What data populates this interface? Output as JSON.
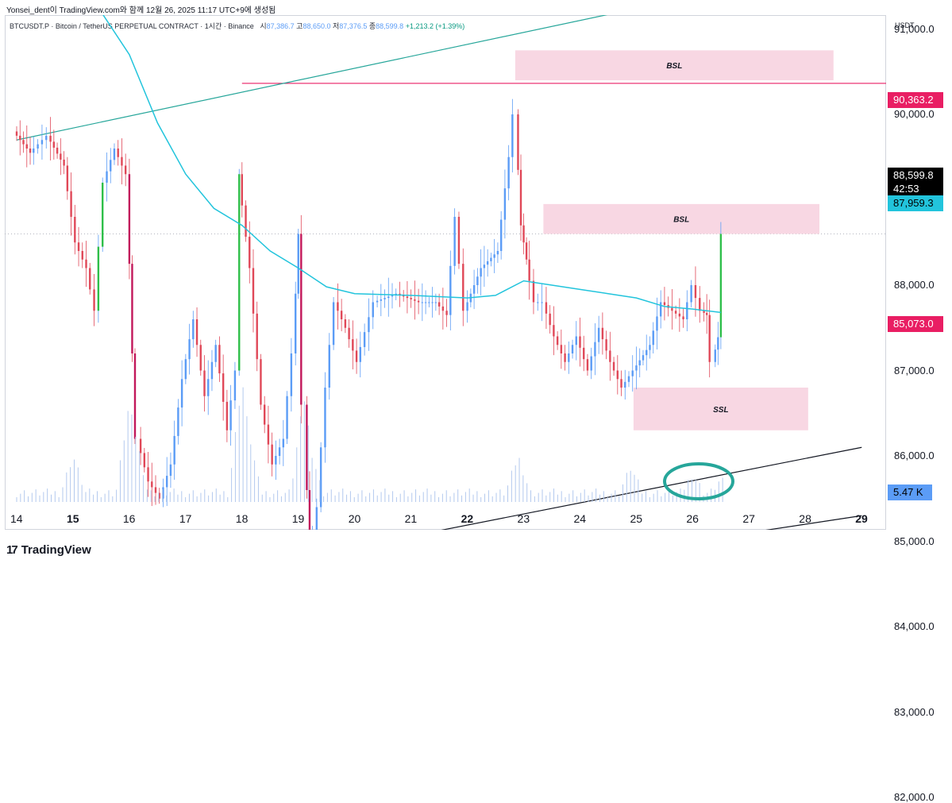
{
  "header": {
    "attribution": "Yonsei_dent이 TradingView.com와 함께 12월 26, 2025 11:17 UTC+9에 생성됨",
    "symbol_line": "BTCUSDT.P · Bitcoin / TetherUS PERPETUAL CONTRACT · 1시간 · Binance",
    "ohlc_o_label": "시",
    "ohlc_o": "87,386.7",
    "ohlc_h_label": "고",
    "ohlc_h": "88,650.0",
    "ohlc_l_label": "저",
    "ohlc_l": "87,376.5",
    "ohlc_c_label": "종",
    "ohlc_c": "88,599.8",
    "change": "+1,213.2 (+1.39%)"
  },
  "brand": {
    "logo": "17",
    "name": "TradingView"
  },
  "colors": {
    "up": "#5b9cf6",
    "down": "#e04858",
    "ma": "#22c4dc",
    "zone": "#f8d7e3",
    "level": "#e91e63",
    "trend_teal": "#26a69a"
  },
  "chart_data": {
    "type": "candlestick",
    "x_unit": "day of month (December)",
    "y_unit": "USDT",
    "ylim": [
      80600,
      92000
    ],
    "xlim": [
      13.9,
      29.1
    ],
    "price_ticks": [
      "91,000.0",
      "90,000.0",
      "89,000.0",
      "88,000.0",
      "87,000.0",
      "86,000.0",
      "85,000.0",
      "84,000.0",
      "83,000.0",
      "82,000.0"
    ],
    "price_tick_values": [
      91000,
      90000,
      89000,
      88000,
      87000,
      86000,
      85000,
      84000,
      83000,
      82000
    ],
    "date_ticks": [
      "14",
      "15",
      "16",
      "17",
      "18",
      "19",
      "20",
      "21",
      "22",
      "23",
      "24",
      "25",
      "26",
      "27",
      "28",
      "29"
    ],
    "date_tick_values": [
      14,
      15,
      16,
      17,
      18,
      19,
      20,
      21,
      22,
      23,
      24,
      25,
      26,
      27,
      28,
      29
    ],
    "bold_date_ticks": [
      "15",
      "22",
      "29"
    ],
    "unit_label": "USDT",
    "price_path": [
      [
        14.0,
        89800
      ],
      [
        14.3,
        89550
      ],
      [
        14.6,
        89750
      ],
      [
        14.9,
        89400
      ],
      [
        15.1,
        88500
      ],
      [
        15.3,
        88200
      ],
      [
        15.45,
        87700
      ],
      [
        15.6,
        89200
      ],
      [
        15.8,
        89600
      ],
      [
        16.0,
        89300
      ],
      [
        16.1,
        87200
      ],
      [
        16.2,
        86200
      ],
      [
        16.4,
        85700
      ],
      [
        16.6,
        85500
      ],
      [
        16.8,
        85900
      ],
      [
        17.0,
        86900
      ],
      [
        17.2,
        87600
      ],
      [
        17.4,
        86700
      ],
      [
        17.6,
        87300
      ],
      [
        17.8,
        86300
      ],
      [
        17.95,
        87000
      ],
      [
        18.0,
        89300
      ],
      [
        18.2,
        88200
      ],
      [
        18.4,
        86600
      ],
      [
        18.6,
        85900
      ],
      [
        18.8,
        86200
      ],
      [
        18.95,
        87200
      ],
      [
        19.05,
        88600
      ],
      [
        19.15,
        86600
      ],
      [
        19.25,
        84600
      ],
      [
        19.4,
        85400
      ],
      [
        19.55,
        86800
      ],
      [
        19.7,
        87800
      ],
      [
        19.9,
        87500
      ],
      [
        20.1,
        87100
      ],
      [
        20.4,
        87800
      ],
      [
        20.8,
        87900
      ],
      [
        21.2,
        87800
      ],
      [
        21.5,
        87800
      ],
      [
        21.7,
        87650
      ],
      [
        21.85,
        88800
      ],
      [
        22.0,
        87700
      ],
      [
        22.3,
        88200
      ],
      [
        22.6,
        88400
      ],
      [
        22.8,
        89500
      ],
      [
        22.9,
        90000
      ],
      [
        23.0,
        88700
      ],
      [
        23.1,
        88300
      ],
      [
        23.25,
        87800
      ],
      [
        23.4,
        87800
      ],
      [
        23.6,
        87400
      ],
      [
        23.8,
        87100
      ],
      [
        24.0,
        87400
      ],
      [
        24.2,
        87000
      ],
      [
        24.4,
        87500
      ],
      [
        24.6,
        87100
      ],
      [
        24.8,
        86800
      ],
      [
        25.0,
        87000
      ],
      [
        25.3,
        87300
      ],
      [
        25.5,
        87800
      ],
      [
        25.7,
        87700
      ],
      [
        25.9,
        87600
      ],
      [
        26.05,
        88000
      ],
      [
        26.2,
        87700
      ],
      [
        26.3,
        87650
      ],
      [
        26.4,
        87100
      ],
      [
        26.5,
        87390
      ],
      [
        26.55,
        88600
      ]
    ],
    "moving_average": [
      [
        14.0,
        92000
      ],
      [
        14.5,
        91800
      ],
      [
        15.0,
        91600
      ],
      [
        15.5,
        91200
      ],
      [
        16.0,
        90700
      ],
      [
        16.5,
        89900
      ],
      [
        17.0,
        89300
      ],
      [
        17.5,
        88900
      ],
      [
        18.0,
        88700
      ],
      [
        18.5,
        88400
      ],
      [
        19.0,
        88200
      ],
      [
        19.5,
        87980
      ],
      [
        20.0,
        87900
      ],
      [
        21.0,
        87880
      ],
      [
        22.0,
        87850
      ],
      [
        22.5,
        87880
      ],
      [
        23.0,
        88050
      ],
      [
        23.5,
        88000
      ],
      [
        24.0,
        87950
      ],
      [
        24.5,
        87900
      ],
      [
        25.0,
        87850
      ],
      [
        25.5,
        87750
      ],
      [
        26.0,
        87720
      ],
      [
        26.5,
        87680
      ]
    ],
    "volume_peaks": [
      [
        15.0,
        0.35
      ],
      [
        16.0,
        0.8
      ],
      [
        16.1,
        0.55
      ],
      [
        18.0,
        1.0
      ],
      [
        18.1,
        0.6
      ],
      [
        19.1,
        0.85
      ],
      [
        19.2,
        0.45
      ],
      [
        22.9,
        0.35
      ],
      [
        24.9,
        0.25
      ],
      [
        26.0,
        0.2
      ],
      [
        26.5,
        0.15
      ]
    ],
    "levels": [
      {
        "price": 90363.2,
        "label": "90,363.2",
        "from": 18.0,
        "style": "line"
      },
      {
        "price": 85073.0,
        "label": "85,073.0",
        "from": 16.15,
        "style": "line"
      }
    ],
    "zones": [
      {
        "label": "BSL",
        "x0": 22.85,
        "x1": 28.5,
        "y0": 90400,
        "y1": 90750
      },
      {
        "label": "BSL",
        "x0": 23.35,
        "x1": 28.25,
        "y0": 88600,
        "y1": 88950
      },
      {
        "label": "SSL",
        "x0": 24.95,
        "x1": 28.05,
        "y0": 86300,
        "y1": 86800
      },
      {
        "label": "SSL",
        "x0": 19.2,
        "x1": 28.65,
        "y0": 84050,
        "y1": 84400
      }
    ],
    "trendlines": [
      {
        "color": "teal",
        "from": [
          14.0,
          89700
        ],
        "to": [
          29.0,
          91800
        ]
      },
      {
        "color": "black",
        "from": [
          14.0,
          84150
        ],
        "to": [
          29.0,
          86100
        ]
      },
      {
        "color": "black",
        "from": [
          14.0,
          83800
        ],
        "to": [
          29.0,
          85300
        ]
      },
      {
        "color": "black",
        "from": [
          14.0,
          84200
        ],
        "to": [
          19.15,
          84700
        ]
      }
    ],
    "current_price": "88,599.8",
    "countdown": "42:53",
    "ma_value": "87,959.3",
    "volume_value": "5.47 K"
  }
}
